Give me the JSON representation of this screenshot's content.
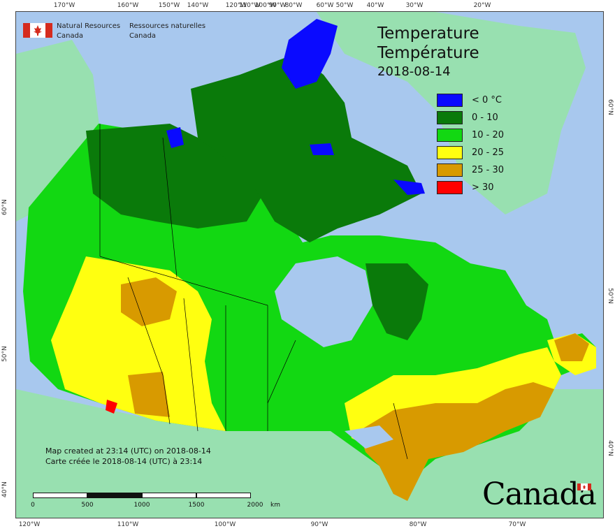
{
  "agency": {
    "en_line1": "Natural Resources",
    "en_line2": "Canada",
    "fr_line1": "Ressources naturelles",
    "fr_line2": "Canada"
  },
  "title": {
    "en": "Temperature",
    "fr": "Température",
    "date": "2018-08-14"
  },
  "legend": [
    {
      "label": "< 0 °C",
      "color": "#0a0aff"
    },
    {
      "label": "0 - 10",
      "color": "#0a7a0a"
    },
    {
      "label": "10 - 20",
      "color": "#12d812"
    },
    {
      "label": "20 - 25",
      "color": "#ffff10"
    },
    {
      "label": "25 - 30",
      "color": "#d89a00"
    },
    {
      "label": "> 30",
      "color": "#ff0000"
    }
  ],
  "credit": {
    "en": "Map created at 23:14 (UTC) on 2018-08-14",
    "fr": "Carte créée le 2018-08-14 (UTC) à 23:14"
  },
  "scale": {
    "labels": [
      "0",
      "500",
      "1000",
      "1500",
      "2000"
    ],
    "unit": "km"
  },
  "wordmark": "Canada",
  "graticule": {
    "top": [
      "170°W",
      "160°W",
      "150°W",
      "140°W",
      "120°W",
      "110°W",
      "100°W",
      "90°W",
      "80°W",
      "60°W",
      "50°W",
      "40°W",
      "30°W",
      "20°W"
    ],
    "bottom": [
      "120°W",
      "110°W",
      "100°W",
      "90°W",
      "80°W",
      "70°W"
    ],
    "left": [
      "60°N",
      "50°N",
      "40°N"
    ],
    "right": [
      "60°N",
      "50°N",
      "40°N"
    ]
  },
  "colors": {
    "ocean": "#a8c8ee",
    "land_other": "#98e0b0",
    "border": "#000000"
  }
}
